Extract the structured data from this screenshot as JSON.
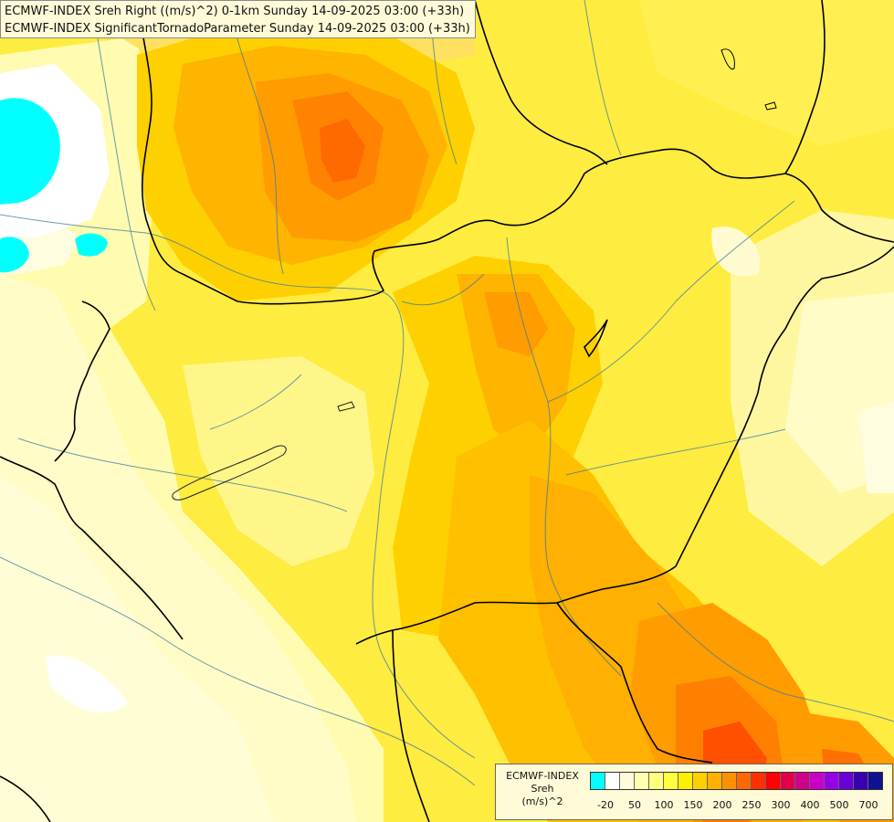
{
  "header": {
    "line1": "ECMWF-INDEX Sreh Right ((m/s)^2) 0-1km Sunday 14-09-2025 03:00 (+33h)",
    "line2": "ECMWF-INDEX SignificantTornadoParameter Sunday 14-09-2025 03:00 (+33h)"
  },
  "legend": {
    "title_lines": [
      "ECMWF-INDEX",
      "Sreh",
      "(m/s)^2"
    ],
    "colors": [
      "#00ffff",
      "#ffffff",
      "#fffbd8",
      "#ffffb0",
      "#ffff80",
      "#ffff40",
      "#ffef00",
      "#ffd000",
      "#ffb000",
      "#ff9000",
      "#ff6800",
      "#ff3000",
      "#ff0000",
      "#e0004a",
      "#d0008a",
      "#c800c8",
      "#9800e8",
      "#6800d8",
      "#3800b0",
      "#101090"
    ],
    "ticks": [
      {
        "label": "-20",
        "after_swatch": 1
      },
      {
        "label": "50",
        "after_swatch": 3
      },
      {
        "label": "100",
        "after_swatch": 5
      },
      {
        "label": "150",
        "after_swatch": 7
      },
      {
        "label": "200",
        "after_swatch": 9
      },
      {
        "label": "250",
        "after_swatch": 11
      },
      {
        "label": "300",
        "after_swatch": 13
      },
      {
        "label": "400",
        "after_swatch": 15
      },
      {
        "label": "500",
        "after_swatch": 17
      },
      {
        "label": "700",
        "after_swatch": 19
      }
    ]
  }
}
